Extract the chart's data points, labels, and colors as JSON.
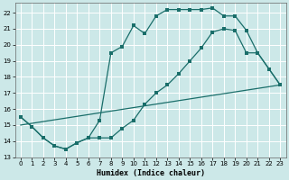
{
  "background_color": "#cce8e8",
  "grid_color": "#b0d0d0",
  "line_color": "#1a6e6a",
  "xlabel": "Humidex (Indice chaleur)",
  "xlim": [
    -0.5,
    23.5
  ],
  "ylim": [
    13,
    22.6
  ],
  "yticks": [
    13,
    14,
    15,
    16,
    17,
    18,
    19,
    20,
    21,
    22
  ],
  "xticks": [
    0,
    1,
    2,
    3,
    4,
    5,
    6,
    7,
    8,
    9,
    10,
    11,
    12,
    13,
    14,
    15,
    16,
    17,
    18,
    19,
    20,
    21,
    22,
    23
  ],
  "curve1_x": [
    0,
    1,
    2,
    3,
    4,
    5,
    6,
    7,
    8,
    9,
    10,
    11,
    12,
    13,
    14,
    15,
    16,
    17,
    18,
    19,
    20,
    21,
    22,
    23
  ],
  "curve1_y": [
    15.5,
    14.9,
    14.2,
    13.7,
    13.5,
    13.9,
    14.2,
    15.3,
    19.5,
    19.9,
    21.2,
    20.7,
    21.8,
    22.2,
    22.2,
    22.2,
    22.2,
    22.3,
    21.8,
    21.8,
    20.9,
    19.5,
    18.5,
    17.5
  ],
  "curve2_x": [
    0,
    1,
    2,
    3,
    4,
    5,
    6,
    7,
    8,
    9,
    10,
    11,
    12,
    13,
    14,
    15,
    16,
    17,
    18,
    19,
    20,
    21,
    22,
    23
  ],
  "curve2_y": [
    15.5,
    14.9,
    14.2,
    13.7,
    13.5,
    13.9,
    14.2,
    14.2,
    14.2,
    14.8,
    15.3,
    16.3,
    17.0,
    17.5,
    18.2,
    19.0,
    19.8,
    20.8,
    21.0,
    20.9,
    19.5,
    19.5,
    18.5,
    17.5
  ],
  "curve3_x": [
    0,
    23
  ],
  "curve3_y": [
    15.0,
    17.5
  ]
}
